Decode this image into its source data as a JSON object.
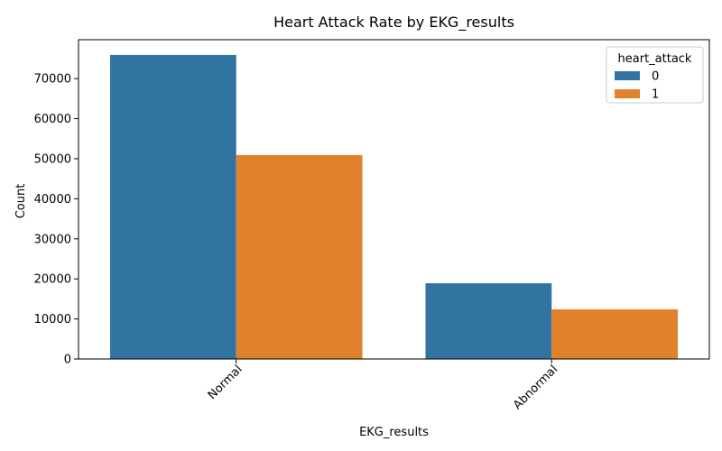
{
  "chart_data": {
    "type": "bar",
    "title": "Heart Attack Rate by EKG_results",
    "xlabel": "EKG_results",
    "ylabel": "Count",
    "categories": [
      "Normal",
      "Abnormal"
    ],
    "series": [
      {
        "name": "0",
        "values": [
          75900,
          18900
        ],
        "color": "#3274a1"
      },
      {
        "name": "1",
        "values": [
          50900,
          12400
        ],
        "color": "#e1812c"
      }
    ],
    "ylim": [
      0,
      79720
    ],
    "yticks": [
      0,
      10000,
      20000,
      30000,
      40000,
      50000,
      60000,
      70000
    ],
    "ytick_labels": [
      "0",
      "10000",
      "20000",
      "30000",
      "40000",
      "50000",
      "60000",
      "70000"
    ],
    "legend": {
      "title": "heart_attack",
      "placement": "top-right"
    },
    "grid": false
  }
}
